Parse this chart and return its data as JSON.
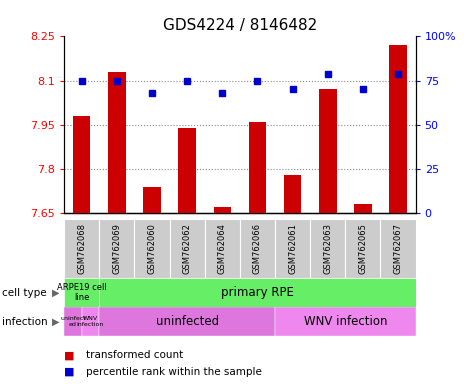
{
  "title": "GDS4224 / 8146482",
  "samples": [
    "GSM762068",
    "GSM762069",
    "GSM762060",
    "GSM762062",
    "GSM762064",
    "GSM762066",
    "GSM762061",
    "GSM762063",
    "GSM762065",
    "GSM762067"
  ],
  "transformed_count": [
    7.98,
    8.13,
    7.74,
    7.94,
    7.67,
    7.96,
    7.78,
    8.07,
    7.68,
    8.22
  ],
  "percentile_rank": [
    75,
    75,
    68,
    75,
    68,
    75,
    70,
    79,
    70,
    79
  ],
  "ylim_left": [
    7.65,
    8.25
  ],
  "ylim_right": [
    0,
    100
  ],
  "yticks_left": [
    7.65,
    7.8,
    7.95,
    8.1,
    8.25
  ],
  "ytick_labels_left": [
    "7.65",
    "7.8",
    "7.95",
    "8.1",
    "8.25"
  ],
  "yticks_right": [
    0,
    25,
    50,
    75,
    100
  ],
  "ytick_labels_right": [
    "0",
    "25",
    "50",
    "75",
    "100%"
  ],
  "hlines": [
    8.1,
    7.95,
    7.8
  ],
  "bar_color": "#cc0000",
  "dot_color": "#0000cc",
  "bar_width": 0.5,
  "cell_type_green": "#66ee66",
  "infection_pink1": "#dd77dd",
  "infection_pink2": "#ee88ee",
  "sample_box_gray": "#cccccc",
  "cell_type_row_label": "cell type",
  "infection_row_label": "infection",
  "legend_items": [
    {
      "color": "#cc0000",
      "label": "transformed count"
    },
    {
      "color": "#0000cc",
      "label": "percentile rank within the sample"
    }
  ],
  "title_fontsize": 11,
  "tick_fontsize": 8,
  "sample_fontsize": 6
}
